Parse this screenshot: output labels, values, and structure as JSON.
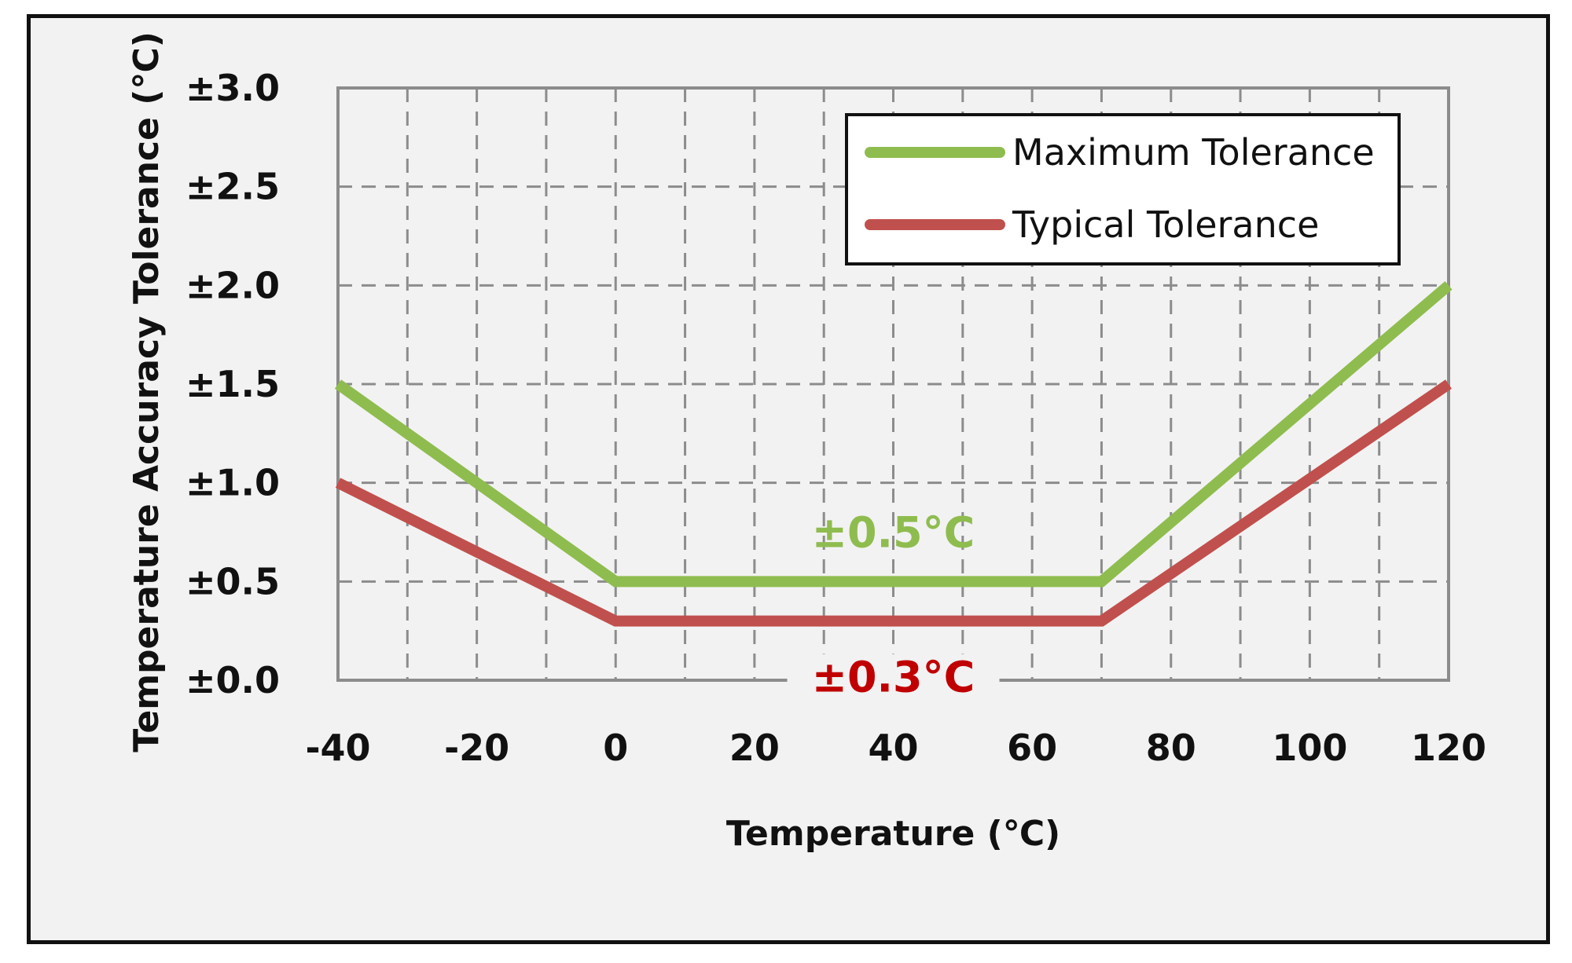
{
  "chart_data": {
    "type": "line",
    "title": "",
    "xlabel": "Temperature (℃)",
    "ylabel": "Temperature Accuracy Tolerance (℃)",
    "xlim": [
      -40,
      120
    ],
    "ylim": [
      0,
      3
    ],
    "x_ticks": [
      -40,
      -20,
      0,
      20,
      40,
      60,
      80,
      100,
      120
    ],
    "x_tick_labels": [
      "-40",
      "-20",
      "0",
      "20",
      "40",
      "60",
      "80",
      "100",
      "120"
    ],
    "y_ticks": [
      0,
      0.5,
      1.0,
      1.5,
      2.0,
      2.5,
      3.0
    ],
    "y_tick_labels": [
      "±0.0",
      "±0.5",
      "±1.0",
      "±1.5",
      "±2.0",
      "±2.5",
      "±3.0"
    ],
    "grid": true,
    "legend_position": "top-right",
    "series": [
      {
        "name": "Maximum Tolerance",
        "color": "#8fbc4f",
        "x": [
          -40,
          0,
          70,
          120
        ],
        "y": [
          1.5,
          0.5,
          0.5,
          2.0
        ]
      },
      {
        "name": "Typical Tolerance",
        "color": "#c0504d",
        "x": [
          -40,
          0,
          70,
          120
        ],
        "y": [
          1.0,
          0.3,
          0.3,
          1.5
        ]
      }
    ],
    "annotations": [
      {
        "text": "±0.5°C",
        "x": 40,
        "y": 0.5,
        "color": "#8fbc4f"
      },
      {
        "text": "±0.3°C",
        "x": 40,
        "y": 0.3,
        "color": "#c00000"
      }
    ]
  }
}
